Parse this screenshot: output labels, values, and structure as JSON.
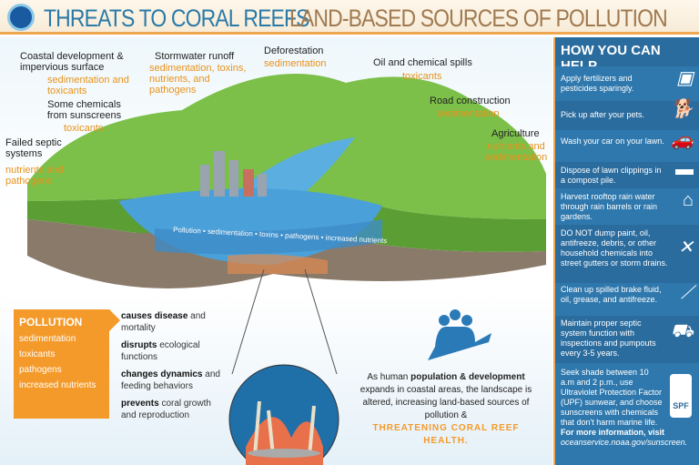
{
  "header": {
    "logo": "NOAA",
    "title_primary": "THREATS TO CORAL REEFS",
    "title_secondary": "LAND-BASED SOURCES OF POLLUTION"
  },
  "sources": [
    {
      "name": "Coastal development & impervious surface",
      "impact": "sedimentation and toxicants"
    },
    {
      "name": "Stormwater runoff",
      "impact": "sedimentation, toxins, nutrients, and pathogens"
    },
    {
      "name": "Deforestation",
      "impact": "sedimentation"
    },
    {
      "name": "Oil and chemical spills",
      "impact": "toxicants"
    },
    {
      "name": "Road construction",
      "impact": "sedimentation"
    },
    {
      "name": "Some chemicals from sunscreens",
      "impact": "toxicants"
    },
    {
      "name": "Failed septic systems",
      "impact": "nutrients and pathogens"
    },
    {
      "name": "Agriculture",
      "impact": "nutrients and sedimentation"
    }
  ],
  "stream_text": "Pollution • sedimentation • toxins • pathogens • increased nutrients",
  "pollution_box": {
    "title": "POLLUTION",
    "items": [
      "sedimentation",
      "toxicants",
      "pathogens",
      "increased nutrients"
    ]
  },
  "effects": [
    {
      "bold": "causes disease",
      "rest": " and mortality"
    },
    {
      "bold": "disrupts",
      "rest": " ecological functions"
    },
    {
      "bold": "changes dynamics",
      "rest": " and feeding behaviors"
    },
    {
      "bold": "prevents",
      "rest": " coral growth and reproduction"
    }
  ],
  "human": {
    "pre": "As human ",
    "bold": "population & development",
    "post": " expands in coastal areas, the landscape is altered, increasing land-based sources of pollution &",
    "highlight": "THREATENING CORAL REEF HEALTH."
  },
  "help": {
    "title": "HOW YOU CAN HELP",
    "items": [
      {
        "text": "Apply fertilizers and pesticides sparingly.",
        "icon": "fertilizer-bag-icon"
      },
      {
        "text": "Pick up after your pets.",
        "icon": "dog-shovel-icon"
      },
      {
        "text": "Wash your car on your lawn.",
        "icon": "car-wash-icon"
      },
      {
        "text": "Dispose of lawn clippings in a compost pile.",
        "icon": "lawnmower-icon"
      },
      {
        "text": "Harvest rooftop rain water through rain barrels or rain gardens.",
        "icon": "rain-barrel-icon"
      },
      {
        "text": "DO NOT dump paint, oil, antifreeze, debris, or other household chemicals into street gutters or storm drains.",
        "icon": "paint-can-icon"
      },
      {
        "text": "Clean up spilled brake fluid, oil, grease, and antifreeze.",
        "icon": "broom-icon"
      },
      {
        "text": "Maintain proper septic system function with inspections and pumpouts every 3-5 years.",
        "icon": "septic-truck-icon"
      },
      {
        "text": "Seek shade between 10 a.m and 2 p.m., use Ultraviolet Protection Factor (UPF) sunwear, and choose sunscreens with chemicals that don't harm marine life.",
        "icon": "sunscreen-icon"
      }
    ],
    "more_info": "For more information, visit",
    "url": "oceanservice.noaa.gov/sunscreen.",
    "spf": "SPF"
  }
}
